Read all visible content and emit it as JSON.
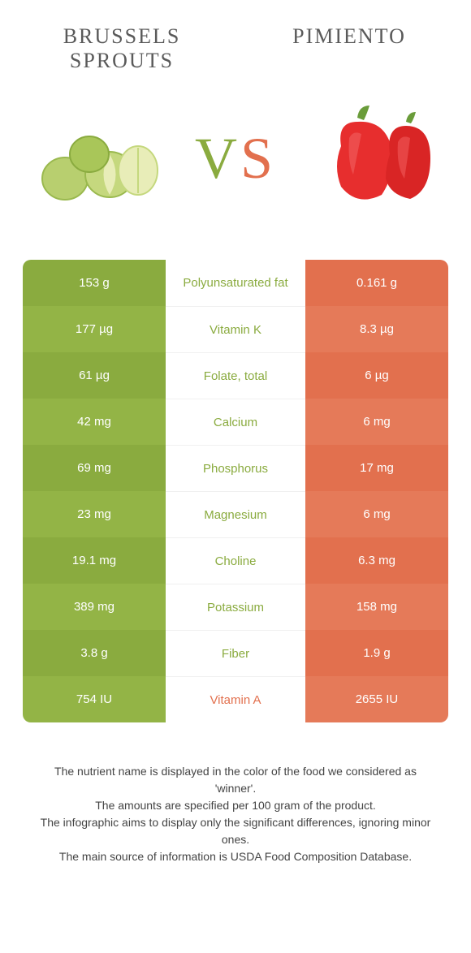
{
  "colors": {
    "left": "#8aab3f",
    "right": "#e2704e",
    "left_stripe_a": "#8aab3f",
    "left_stripe_b": "#93b446",
    "right_stripe_a": "#e2704e",
    "right_stripe_b": "#e57a59",
    "mid_text_left": "#8aab3f",
    "mid_text_right": "#e2704e"
  },
  "header": {
    "left_title": "BRUSSELS SPROUTS",
    "right_title": "PIMIENTO",
    "vs_v": "V",
    "vs_s": "S"
  },
  "rows": [
    {
      "left": "153 g",
      "label": "Polyunsaturated fat",
      "right": "0.161 g",
      "winner": "left"
    },
    {
      "left": "177 µg",
      "label": "Vitamin K",
      "right": "8.3 µg",
      "winner": "left"
    },
    {
      "left": "61 µg",
      "label": "Folate, total",
      "right": "6 µg",
      "winner": "left"
    },
    {
      "left": "42 mg",
      "label": "Calcium",
      "right": "6 mg",
      "winner": "left"
    },
    {
      "left": "69 mg",
      "label": "Phosphorus",
      "right": "17 mg",
      "winner": "left"
    },
    {
      "left": "23 mg",
      "label": "Magnesium",
      "right": "6 mg",
      "winner": "left"
    },
    {
      "left": "19.1 mg",
      "label": "Choline",
      "right": "6.3 mg",
      "winner": "left"
    },
    {
      "left": "389 mg",
      "label": "Potassium",
      "right": "158 mg",
      "winner": "left"
    },
    {
      "left": "3.8 g",
      "label": "Fiber",
      "right": "1.9 g",
      "winner": "left"
    },
    {
      "left": "754 IU",
      "label": "Vitamin A",
      "right": "2655 IU",
      "winner": "right"
    }
  ],
  "footer": {
    "line1": "The nutrient name is displayed in the color of the food we considered as 'winner'.",
    "line2": "The amounts are specified per 100 gram of the product.",
    "line3": "The infographic aims to display only the significant differences, ignoring minor ones.",
    "line4": "The main source of information is USDA Food Composition Database."
  }
}
